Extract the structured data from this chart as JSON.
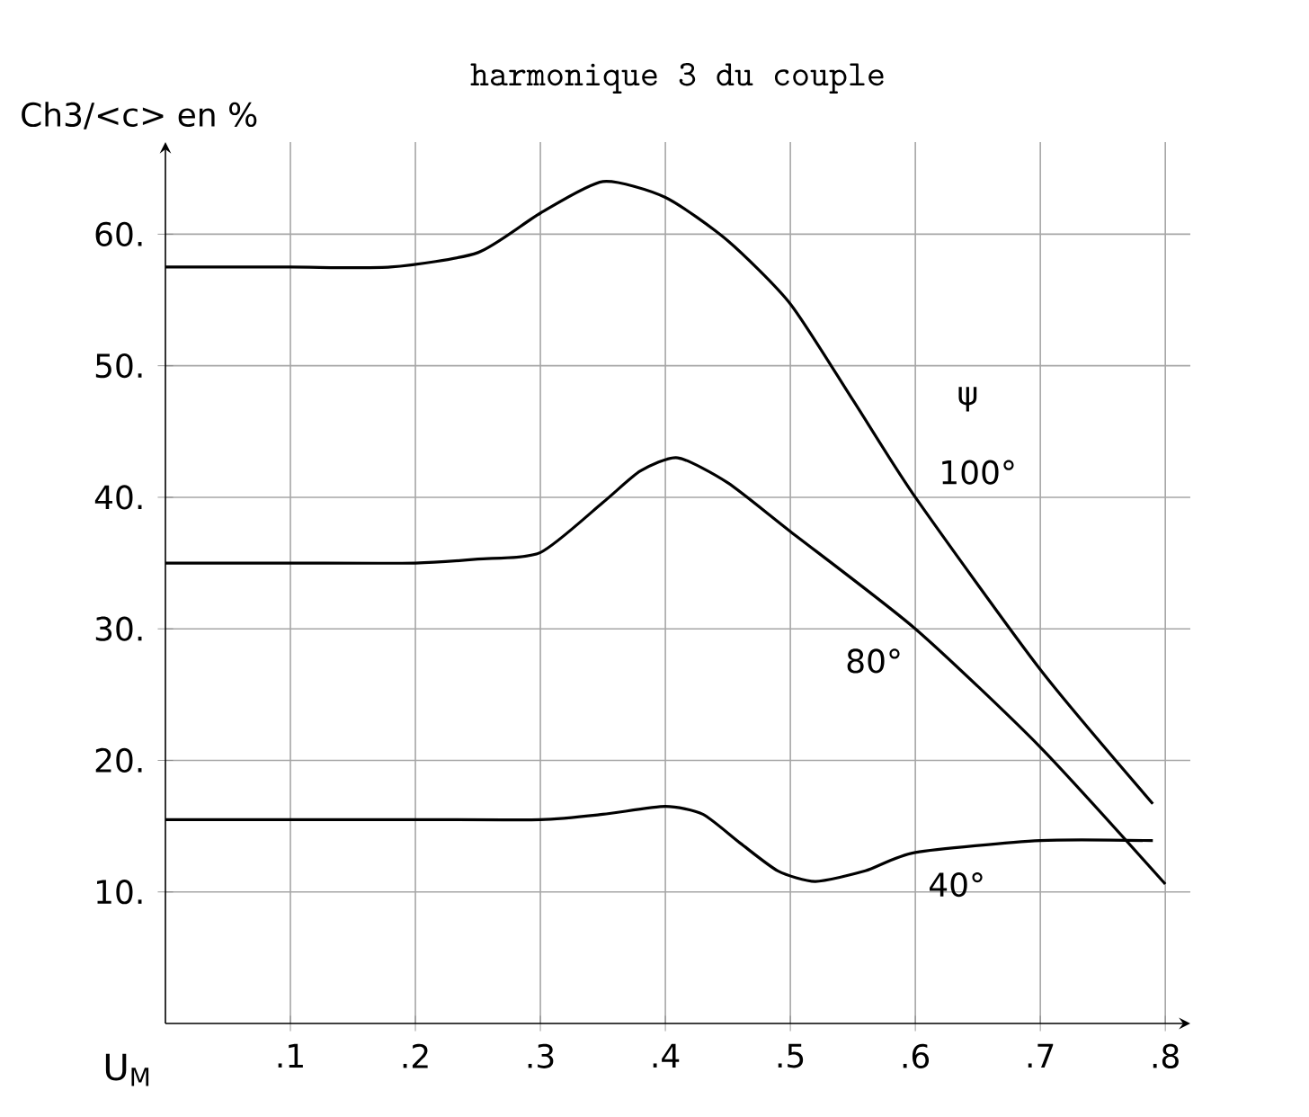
{
  "chart_data": {
    "type": "line",
    "title": "harmonique 3 du couple",
    "xlabel": "U$_{M}$",
    "ylabel": "Ch3/<c> en %",
    "xlim": [
      0,
      0.82
    ],
    "ylim": [
      0,
      67
    ],
    "xticks": [
      {
        "value": 0.1,
        "label": ".1"
      },
      {
        "value": 0.2,
        "label": ".2"
      },
      {
        "value": 0.3,
        "label": ".3"
      },
      {
        "value": 0.4,
        "label": ".4"
      },
      {
        "value": 0.5,
        "label": ".5"
      },
      {
        "value": 0.6,
        "label": ".6"
      },
      {
        "value": 0.7,
        "label": ".7"
      },
      {
        "value": 0.8,
        "label": ".8"
      }
    ],
    "yticks": [
      {
        "value": 10,
        "label": "10."
      },
      {
        "value": 20,
        "label": "20."
      },
      {
        "value": 30,
        "label": "30."
      },
      {
        "value": 40,
        "label": "40."
      },
      {
        "value": 50,
        "label": "50."
      },
      {
        "value": 60,
        "label": "60."
      }
    ],
    "grid": true,
    "marker": "none",
    "line_style": "solid",
    "series": [
      {
        "name": "100°",
        "color": "#000000",
        "x": [
          0,
          0.1,
          0.18,
          0.25,
          0.3,
          0.35,
          0.4,
          0.45,
          0.5,
          0.55,
          0.6,
          0.7,
          0.79
        ],
        "values": [
          57.5,
          57.5,
          57.5,
          58.6,
          61.6,
          64,
          62.8,
          59.5,
          54.7,
          47.4,
          40,
          26.9,
          16.7
        ]
      },
      {
        "name": "80°",
        "color": "#000000",
        "x": [
          0,
          0.1,
          0.2,
          0.25,
          0.3,
          0.35,
          0.38,
          0.41,
          0.45,
          0.5,
          0.6,
          0.7,
          0.8
        ],
        "values": [
          35,
          35,
          35,
          35.3,
          35.8,
          39.6,
          42,
          43,
          41.1,
          37.4,
          30,
          21,
          10.6
        ]
      },
      {
        "name": "40°",
        "color": "#000000",
        "x": [
          0,
          0.1,
          0.2,
          0.3,
          0.35,
          0.4,
          0.43,
          0.46,
          0.49,
          0.52,
          0.56,
          0.6,
          0.7,
          0.79
        ],
        "values": [
          15.5,
          15.5,
          15.5,
          15.5,
          15.9,
          16.5,
          15.9,
          13.7,
          11.6,
          10.8,
          11.6,
          13,
          13.9,
          13.9
        ]
      }
    ],
    "annotations": [
      "ψ"
    ]
  }
}
